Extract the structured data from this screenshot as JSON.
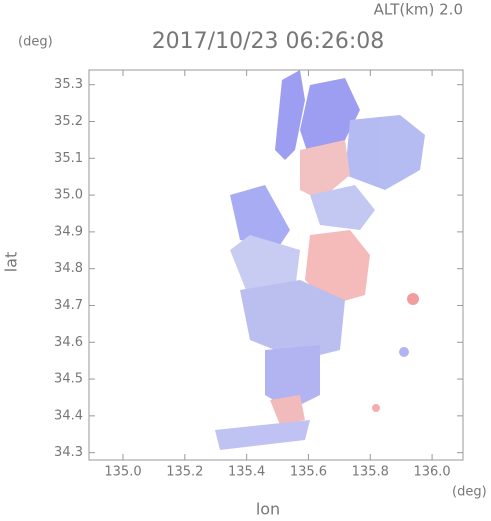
{
  "chart_data": {
    "type": "map",
    "title": "2017/10/23 06:26:08",
    "subtitle": "ALT(km) 2.0",
    "xlabel": "lon",
    "ylabel": "lat",
    "xunit": "(deg)",
    "yunit": "(deg)",
    "xlim": [
      134.89,
      136.1
    ],
    "ylim": [
      34.28,
      35.34
    ],
    "xticks": [
      {
        "value": 135,
        "label": "135.0"
      },
      135.2,
      135.4,
      135.6,
      135.8,
      {
        "value": 136,
        "label": "136.0"
      }
    ],
    "yticks": [
      34.3,
      34.4,
      34.5,
      34.6,
      34.7,
      34.8,
      34.9,
      {
        "value": 35,
        "label": "35.0"
      },
      35.1,
      35.2,
      35.3
    ]
  }
}
